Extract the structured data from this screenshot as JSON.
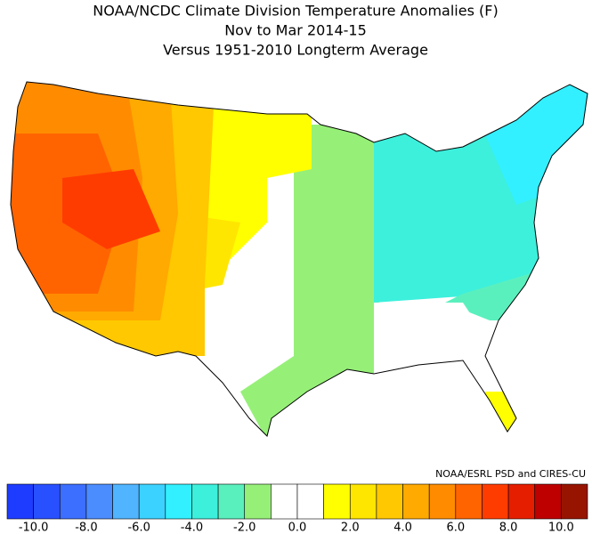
{
  "header": {
    "title": "NOAA/NCDC Climate Division Temperature Anomalies (F)",
    "subtitle": "Nov to Mar 2014-15",
    "note": "Versus 1951-2010 Longterm Average"
  },
  "credit": "NOAA/ESRL PSD and CIRES-CU",
  "colorbar": {
    "lim": [
      -11,
      11
    ],
    "colors": [
      "#1e3cff",
      "#2850ff",
      "#3c6eff",
      "#4b8cff",
      "#50b4ff",
      "#3cd2ff",
      "#32f0ff",
      "#3cf0dc",
      "#5af0be",
      "#96f078",
      "#ffffff",
      "#ffffff",
      "#ffff00",
      "#ffe600",
      "#ffc800",
      "#ffaa00",
      "#ff8c00",
      "#ff6400",
      "#ff3c00",
      "#e61e00",
      "#be0000",
      "#961400"
    ],
    "ticks": [
      {
        "value": -10,
        "label": "-10.0"
      },
      {
        "value": -8,
        "label": "-8.0"
      },
      {
        "value": -6,
        "label": "-6.0"
      },
      {
        "value": -4,
        "label": "-4.0"
      },
      {
        "value": -2,
        "label": "-2.0"
      },
      {
        "value": 0,
        "label": "0.0"
      },
      {
        "value": 2,
        "label": "2.0"
      },
      {
        "value": 4,
        "label": "4.0"
      },
      {
        "value": 6,
        "label": "6.0"
      },
      {
        "value": 8,
        "label": "8.0"
      },
      {
        "value": 10,
        "label": "10.0"
      }
    ]
  }
}
